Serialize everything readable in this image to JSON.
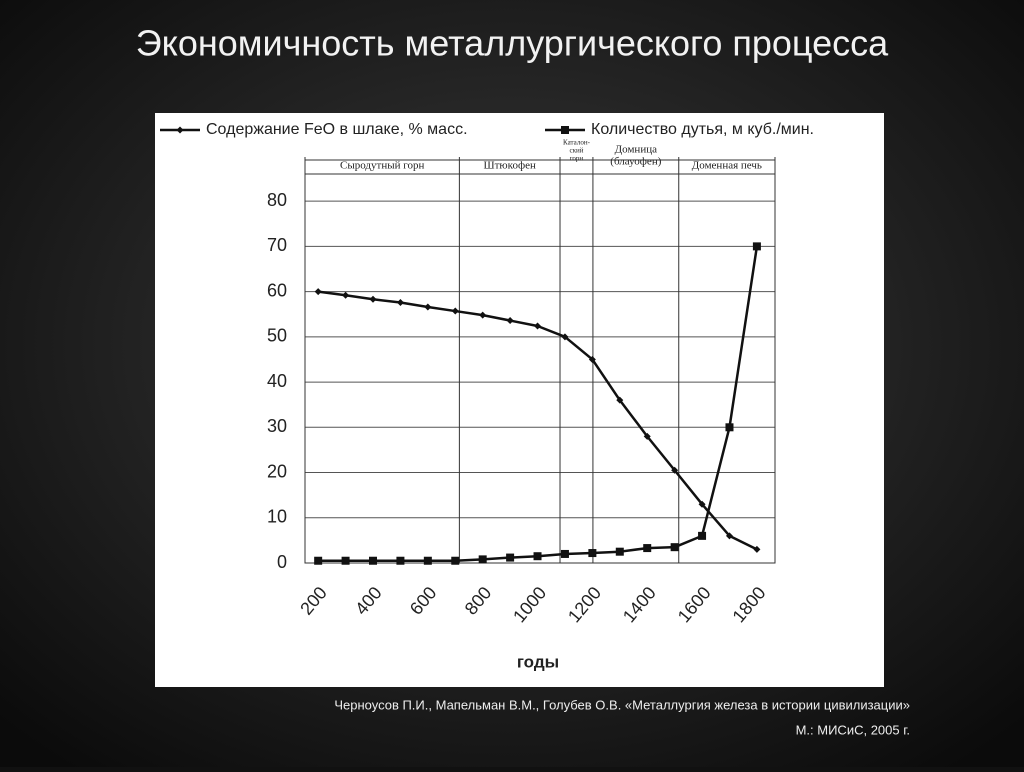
{
  "chart_data": {
    "type": "line",
    "title": "Экономичность металлургического процесса",
    "x_label": "годы",
    "xlim": [
      152,
      1866
    ],
    "xticks": [
      200,
      400,
      600,
      800,
      1000,
      1200,
      1400,
      1600,
      1800
    ],
    "ylim": [
      0,
      86
    ],
    "yticks": [
      0,
      10,
      20,
      30,
      40,
      50,
      60,
      70,
      80
    ],
    "grid": true,
    "x": [
      200,
      300,
      400,
      500,
      600,
      700,
      800,
      900,
      1000,
      1100,
      1200,
      1300,
      1400,
      1500,
      1600,
      1700,
      1800
    ],
    "series": [
      {
        "name": "Содержание FeO в шлаке, % масс.",
        "color": "#111111",
        "marker": "diamond",
        "values": [
          60,
          59.2,
          58.3,
          57.6,
          56.6,
          55.7,
          54.8,
          53.6,
          52.4,
          50,
          45,
          36,
          28,
          20.5,
          13,
          6,
          3
        ]
      },
      {
        "name": "Количество дутья, м куб./мин.",
        "color": "#111111",
        "marker": "square",
        "values": [
          0.5,
          0.5,
          0.5,
          0.5,
          0.5,
          0.5,
          0.8,
          1.2,
          1.5,
          2,
          2.2,
          2.5,
          3.3,
          3.5,
          6,
          30,
          70
        ]
      }
    ],
    "period_bounds": [
      715,
      1082,
      1202,
      1515
    ],
    "periods": [
      [
        "Сыродутный горн"
      ],
      [
        "Штюкофен"
      ],
      [
        "Каталон-",
        "ский",
        "горн"
      ],
      [
        "Домница",
        "(блауофен)"
      ],
      [
        "Доменная печь"
      ]
    ],
    "source": [
      "Черноусов П.И.,  Мапельман В.М., Голубев О.В. «Металлургия железа в истории цивилизации»",
      "М.: МИСиС, 2005 г."
    ]
  }
}
